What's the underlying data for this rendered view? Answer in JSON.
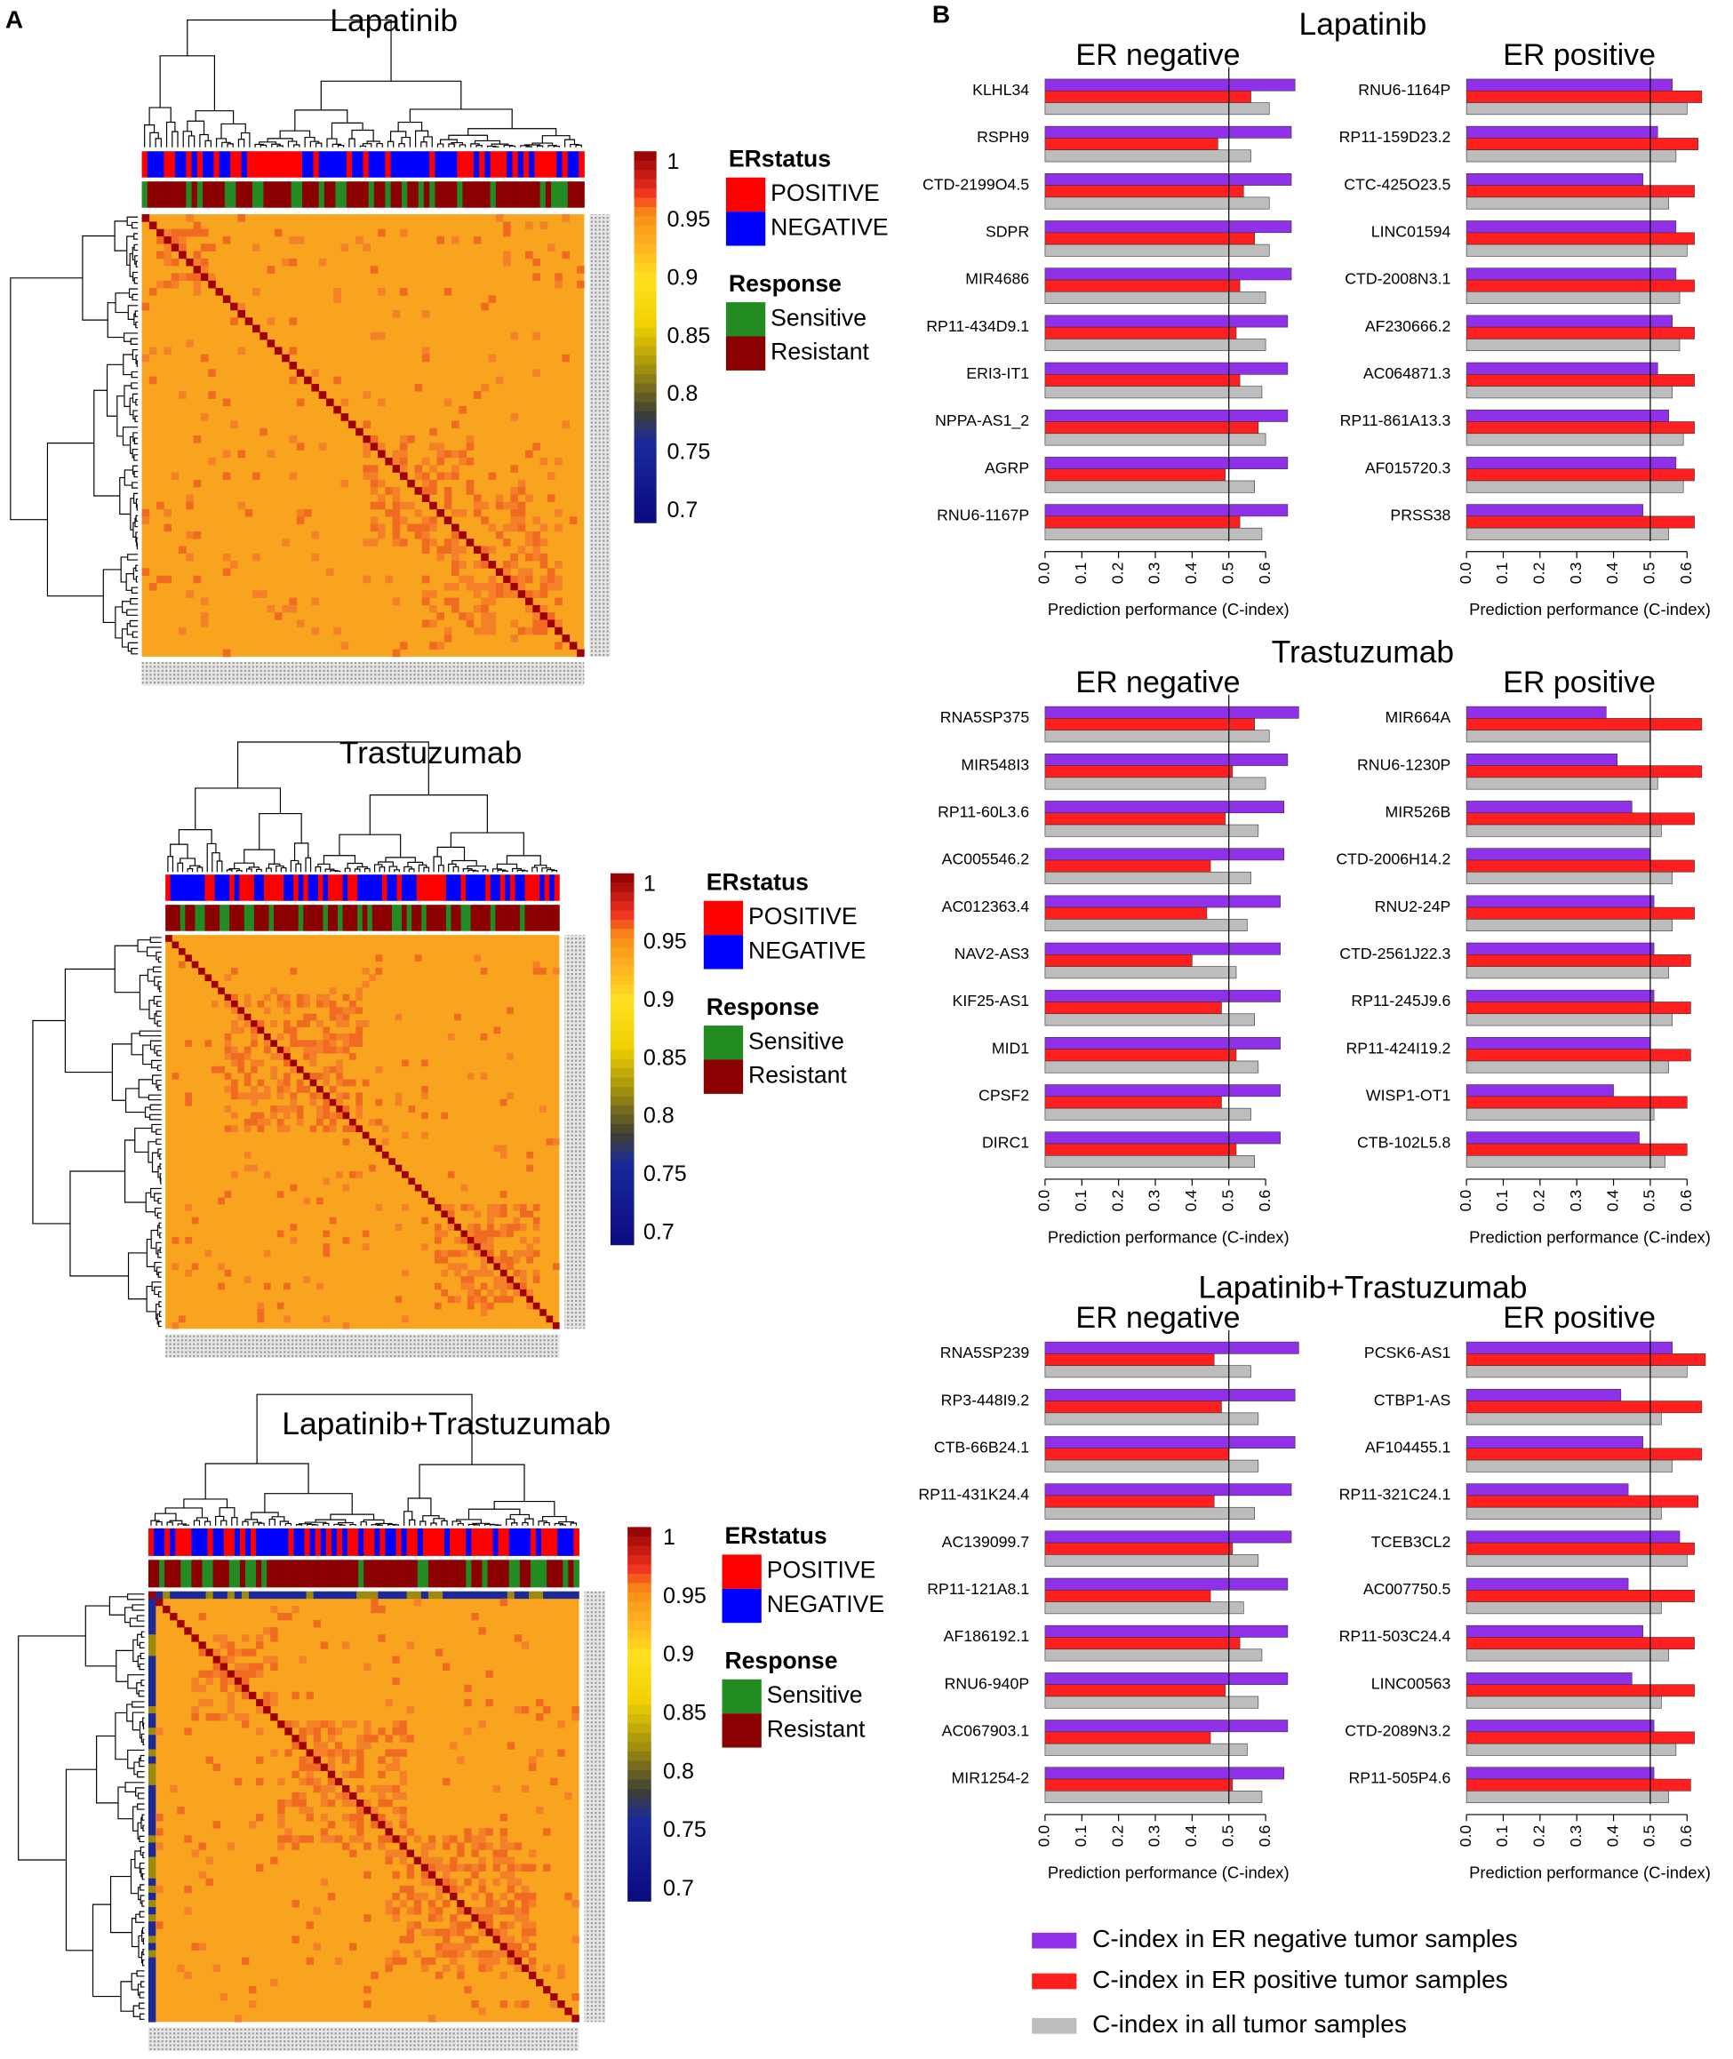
{
  "panel_labels": [
    "A",
    "B"
  ],
  "legend": [
    {
      "name": "C-index in ER negative tumor samples",
      "color": "#9030e8"
    },
    {
      "name": "C-index in ER positive tumor samples",
      "color": "#ff1f1f"
    },
    {
      "name": "C-index in all tumor samples",
      "color": "#bdbdbd"
    }
  ],
  "chart_data": [
    {
      "type": "heatmap",
      "title": "Lapatinib",
      "clim": [
        0.69,
        1.01
      ],
      "colorbar_ticks": [
        1,
        0.95,
        0.9,
        0.85,
        0.8,
        0.75,
        0.7
      ],
      "colorscale": [
        [
          0.69,
          "#0a0a80"
        ],
        [
          0.76,
          "#1a2a9a"
        ],
        [
          0.785,
          "#404030"
        ],
        [
          0.82,
          "#9c8a10"
        ],
        [
          0.86,
          "#f0d000"
        ],
        [
          0.9,
          "#ffe020"
        ],
        [
          0.93,
          "#ffb020"
        ],
        [
          0.955,
          "#f89018"
        ],
        [
          0.975,
          "#f03020"
        ],
        [
          1.01,
          "#8b0000"
        ]
      ],
      "legend": [
        {
          "title": "ERstatus",
          "items": [
            {
              "label": "POSITIVE",
              "color": "#ff0000"
            },
            {
              "label": "NEGATIVE",
              "color": "#0000ff"
            }
          ]
        },
        {
          "title": "Response",
          "items": [
            {
              "label": "Sensitive",
              "color": "#228b22"
            },
            {
              "label": "Resistant",
              "color": "#8b0000"
            }
          ]
        }
      ]
    },
    {
      "type": "heatmap",
      "title": "Trastuzumab",
      "clim": [
        0.69,
        1.01
      ],
      "colorbar_ticks": [
        1,
        0.95,
        0.9,
        0.85,
        0.8,
        0.75,
        0.7
      ],
      "colorscale": [
        [
          0.69,
          "#0a0a80"
        ],
        [
          0.76,
          "#1a2a9a"
        ],
        [
          0.785,
          "#404030"
        ],
        [
          0.82,
          "#9c8a10"
        ],
        [
          0.86,
          "#f0d000"
        ],
        [
          0.9,
          "#ffe020"
        ],
        [
          0.93,
          "#ffb020"
        ],
        [
          0.955,
          "#f89018"
        ],
        [
          0.975,
          "#f03020"
        ],
        [
          1.01,
          "#8b0000"
        ]
      ],
      "legend": [
        {
          "title": "ERstatus",
          "items": [
            {
              "label": "POSITIVE",
              "color": "#ff0000"
            },
            {
              "label": "NEGATIVE",
              "color": "#0000ff"
            }
          ]
        },
        {
          "title": "Response",
          "items": [
            {
              "label": "Sensitive",
              "color": "#228b22"
            },
            {
              "label": "Resistant",
              "color": "#8b0000"
            }
          ]
        }
      ]
    },
    {
      "type": "heatmap",
      "title": "Lapatinib+Trastuzumab",
      "clim": [
        0.69,
        1.01
      ],
      "colorbar_ticks": [
        1,
        0.95,
        0.9,
        0.85,
        0.8,
        0.75,
        0.7
      ],
      "colorscale": [
        [
          0.69,
          "#0a0a80"
        ],
        [
          0.76,
          "#1a2a9a"
        ],
        [
          0.785,
          "#404030"
        ],
        [
          0.82,
          "#9c8a10"
        ],
        [
          0.86,
          "#f0d000"
        ],
        [
          0.9,
          "#ffe020"
        ],
        [
          0.93,
          "#ffb020"
        ],
        [
          0.955,
          "#f89018"
        ],
        [
          0.975,
          "#f03020"
        ],
        [
          1.01,
          "#8b0000"
        ]
      ],
      "legend": [
        {
          "title": "ERstatus",
          "items": [
            {
              "label": "POSITIVE",
              "color": "#ff0000"
            },
            {
              "label": "NEGATIVE",
              "color": "#0000ff"
            }
          ]
        },
        {
          "title": "Response",
          "items": [
            {
              "label": "Sensitive",
              "color": "#228b22"
            },
            {
              "label": "Resistant",
              "color": "#8b0000"
            }
          ]
        }
      ]
    },
    {
      "type": "bar",
      "suptitle": "Lapatinib",
      "title": "ER negative",
      "xlabel": "Prediction performance (C-index)",
      "xlim": [
        0,
        0.7
      ],
      "xticks": [
        {
          "value": 0,
          "label": "0.0"
        },
        0.1,
        0.2,
        0.3,
        0.4,
        0.5,
        0.6
      ],
      "vline": 0.5,
      "categories": [
        "KLHL34",
        "RSPH9",
        "CTD-2199O4.5",
        "SDPR",
        "MIR4686",
        "RP11-434D9.1",
        "ERI3-IT1",
        "NPPA-AS1_2",
        "AGRP",
        "RNU6-1167P"
      ],
      "series": [
        {
          "values": [
            0.68,
            0.67,
            0.67,
            0.67,
            0.67,
            0.66,
            0.66,
            0.66,
            0.66,
            0.66
          ]
        },
        {
          "values": [
            0.56,
            0.47,
            0.54,
            0.57,
            0.53,
            0.52,
            0.53,
            0.58,
            0.49,
            0.53
          ]
        },
        {
          "values": [
            0.61,
            0.56,
            0.61,
            0.61,
            0.6,
            0.6,
            0.59,
            0.6,
            0.57,
            0.59
          ]
        }
      ]
    },
    {
      "type": "bar",
      "title": "ER positive",
      "xlabel": "Prediction performance (C-index)",
      "xlim": [
        0,
        0.7
      ],
      "xticks": [
        {
          "value": 0,
          "label": "0.0"
        },
        0.1,
        0.2,
        0.3,
        0.4,
        0.5,
        0.6
      ],
      "vline": 0.5,
      "categories": [
        "RNU6-1164P",
        "RP11-159D23.2",
        "CTC-425O23.5",
        "LINC01594",
        "CTD-2008N3.1",
        "AF230666.2",
        "AC064871.3",
        "RP11-861A13.3",
        "AF015720.3",
        "PRSS38"
      ],
      "series": [
        {
          "values": [
            0.56,
            0.52,
            0.48,
            0.57,
            0.57,
            0.56,
            0.52,
            0.55,
            0.57,
            0.48
          ]
        },
        {
          "values": [
            0.64,
            0.63,
            0.62,
            0.62,
            0.62,
            0.62,
            0.62,
            0.62,
            0.62,
            0.62
          ]
        },
        {
          "values": [
            0.6,
            0.57,
            0.55,
            0.6,
            0.58,
            0.58,
            0.56,
            0.59,
            0.59,
            0.55
          ]
        }
      ]
    },
    {
      "type": "bar",
      "suptitle": "Trastuzumab",
      "title": "ER negative",
      "xlabel": "Prediction performance (C-index)",
      "xlim": [
        0,
        0.7
      ],
      "xticks": [
        {
          "value": 0,
          "label": "0.0"
        },
        0.1,
        0.2,
        0.3,
        0.4,
        0.5,
        0.6
      ],
      "vline": 0.5,
      "categories": [
        "RNA5SP375",
        "MIR548I3",
        "RP11-60L3.6",
        "AC005546.2",
        "AC012363.4",
        "NAV2-AS3",
        "KIF25-AS1",
        "MID1",
        "CPSF2",
        "DIRC1"
      ],
      "series": [
        {
          "values": [
            0.69,
            0.66,
            0.65,
            0.65,
            0.64,
            0.64,
            0.64,
            0.64,
            0.64,
            0.64
          ]
        },
        {
          "values": [
            0.57,
            0.51,
            0.49,
            0.45,
            0.44,
            0.4,
            0.48,
            0.52,
            0.48,
            0.52
          ]
        },
        {
          "values": [
            0.61,
            0.6,
            0.58,
            0.56,
            0.55,
            0.52,
            0.57,
            0.58,
            0.56,
            0.57
          ]
        }
      ]
    },
    {
      "type": "bar",
      "title": "ER positive",
      "xlabel": "Prediction performance (C-index)",
      "xlim": [
        0,
        0.7
      ],
      "xticks": [
        {
          "value": 0,
          "label": "0.0"
        },
        0.1,
        0.2,
        0.3,
        0.4,
        0.5,
        0.6
      ],
      "vline": 0.5,
      "categories": [
        "MIR664A",
        "RNU6-1230P",
        "MIR526B",
        "CTD-2006H14.2",
        "RNU2-24P",
        "CTD-2561J22.3",
        "RP11-245J9.6",
        "RP11-424I19.2",
        "WISP1-OT1",
        "CTB-102L5.8"
      ],
      "series": [
        {
          "values": [
            0.38,
            0.41,
            0.45,
            0.5,
            0.51,
            0.51,
            0.51,
            0.5,
            0.4,
            0.47
          ]
        },
        {
          "values": [
            0.64,
            0.64,
            0.62,
            0.62,
            0.62,
            0.61,
            0.61,
            0.61,
            0.6,
            0.6
          ]
        },
        {
          "values": [
            0.5,
            0.52,
            0.53,
            0.56,
            0.56,
            0.55,
            0.56,
            0.55,
            0.51,
            0.54
          ]
        }
      ]
    },
    {
      "type": "bar",
      "suptitle": "Lapatinib+Trastuzumab",
      "title": "ER negative",
      "xlabel": "Prediction performance (C-index)",
      "xlim": [
        0,
        0.7
      ],
      "xticks": [
        {
          "value": 0,
          "label": "0.0"
        },
        0.1,
        0.2,
        0.3,
        0.4,
        0.5,
        0.6
      ],
      "vline": 0.5,
      "categories": [
        "RNA5SP239",
        "RP3-448I9.2",
        "CTB-66B24.1",
        "RP11-431K24.4",
        "AC139099.7",
        "RP11-121A8.1",
        "AF186192.1",
        "RNU6-940P",
        "AC067903.1",
        "MIR1254-2"
      ],
      "series": [
        {
          "values": [
            0.69,
            0.68,
            0.68,
            0.67,
            0.67,
            0.66,
            0.66,
            0.66,
            0.66,
            0.65
          ]
        },
        {
          "values": [
            0.46,
            0.48,
            0.5,
            0.46,
            0.51,
            0.45,
            0.53,
            0.49,
            0.45,
            0.51
          ]
        },
        {
          "values": [
            0.56,
            0.58,
            0.58,
            0.57,
            0.58,
            0.54,
            0.59,
            0.58,
            0.55,
            0.59
          ]
        }
      ]
    },
    {
      "type": "bar",
      "title": "ER positive",
      "xlabel": "Prediction performance (C-index)",
      "xlim": [
        0,
        0.7
      ],
      "xticks": [
        {
          "value": 0,
          "label": "0.0"
        },
        0.1,
        0.2,
        0.3,
        0.4,
        0.5,
        0.6
      ],
      "vline": 0.5,
      "categories": [
        "PCSK6-AS1",
        "CTBP1-AS",
        "AF104455.1",
        "RP11-321C24.1",
        "TCEB3CL2",
        "AC007750.5",
        "RP11-503C24.4",
        "LINC00563",
        "CTD-2089N3.2",
        "RP11-505P4.6"
      ],
      "series": [
        {
          "values": [
            0.56,
            0.42,
            0.48,
            0.44,
            0.58,
            0.44,
            0.48,
            0.45,
            0.51,
            0.51
          ]
        },
        {
          "values": [
            0.65,
            0.64,
            0.64,
            0.63,
            0.62,
            0.62,
            0.62,
            0.62,
            0.62,
            0.61
          ]
        },
        {
          "values": [
            0.6,
            0.53,
            0.56,
            0.53,
            0.6,
            0.53,
            0.55,
            0.53,
            0.57,
            0.55
          ]
        }
      ]
    }
  ]
}
